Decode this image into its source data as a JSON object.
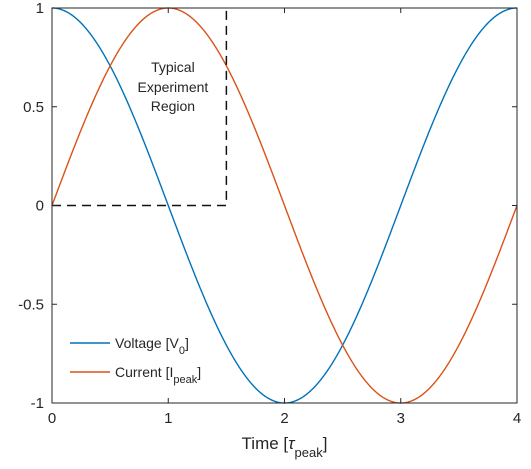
{
  "chart_data": {
    "type": "line",
    "title": "",
    "xlabel": {
      "main": "Time [",
      "symbol": "τ",
      "sub": "peak",
      "close": "]"
    },
    "ylabel": "",
    "xlim": [
      0,
      4
    ],
    "ylim": [
      -1,
      1
    ],
    "x_ticks": [
      0,
      1,
      2,
      3,
      4
    ],
    "x_tick_labels": [
      "0",
      "1",
      "2",
      "3",
      "4"
    ],
    "y_ticks": [
      1,
      0.5,
      0,
      -0.5,
      -1
    ],
    "y_tick_labels": [
      "1",
      "0.5",
      "0",
      "-0.5",
      "-1"
    ],
    "grid": false,
    "legend_placement": "bottom-left",
    "series": [
      {
        "name": {
          "main": "Voltage [V",
          "sub": "0",
          "close": "]"
        },
        "color": "#0072BD",
        "function": "cos(pi*t/2)",
        "x": [
          0,
          0.5,
          1,
          1.5,
          2,
          2.5,
          3,
          3.5,
          4
        ],
        "y": [
          1,
          0.707,
          0,
          -0.707,
          -1,
          -0.707,
          0,
          0.707,
          1
        ]
      },
      {
        "name": {
          "main": "Current [I",
          "sub": "peak",
          "close": "]"
        },
        "color": "#D95319",
        "function": "sin(pi*t/2)",
        "x": [
          0,
          0.5,
          1,
          1.5,
          2,
          2.5,
          3,
          3.5,
          4
        ],
        "y": [
          0,
          0.707,
          1,
          0.707,
          0,
          -0.707,
          -1,
          -0.707,
          0
        ]
      }
    ],
    "annotation": {
      "lines": [
        "Typical",
        "Experiment",
        "Region"
      ],
      "region": {
        "x": [
          0,
          1.5
        ],
        "y": [
          0,
          1
        ]
      },
      "line_style": "dashed"
    }
  }
}
